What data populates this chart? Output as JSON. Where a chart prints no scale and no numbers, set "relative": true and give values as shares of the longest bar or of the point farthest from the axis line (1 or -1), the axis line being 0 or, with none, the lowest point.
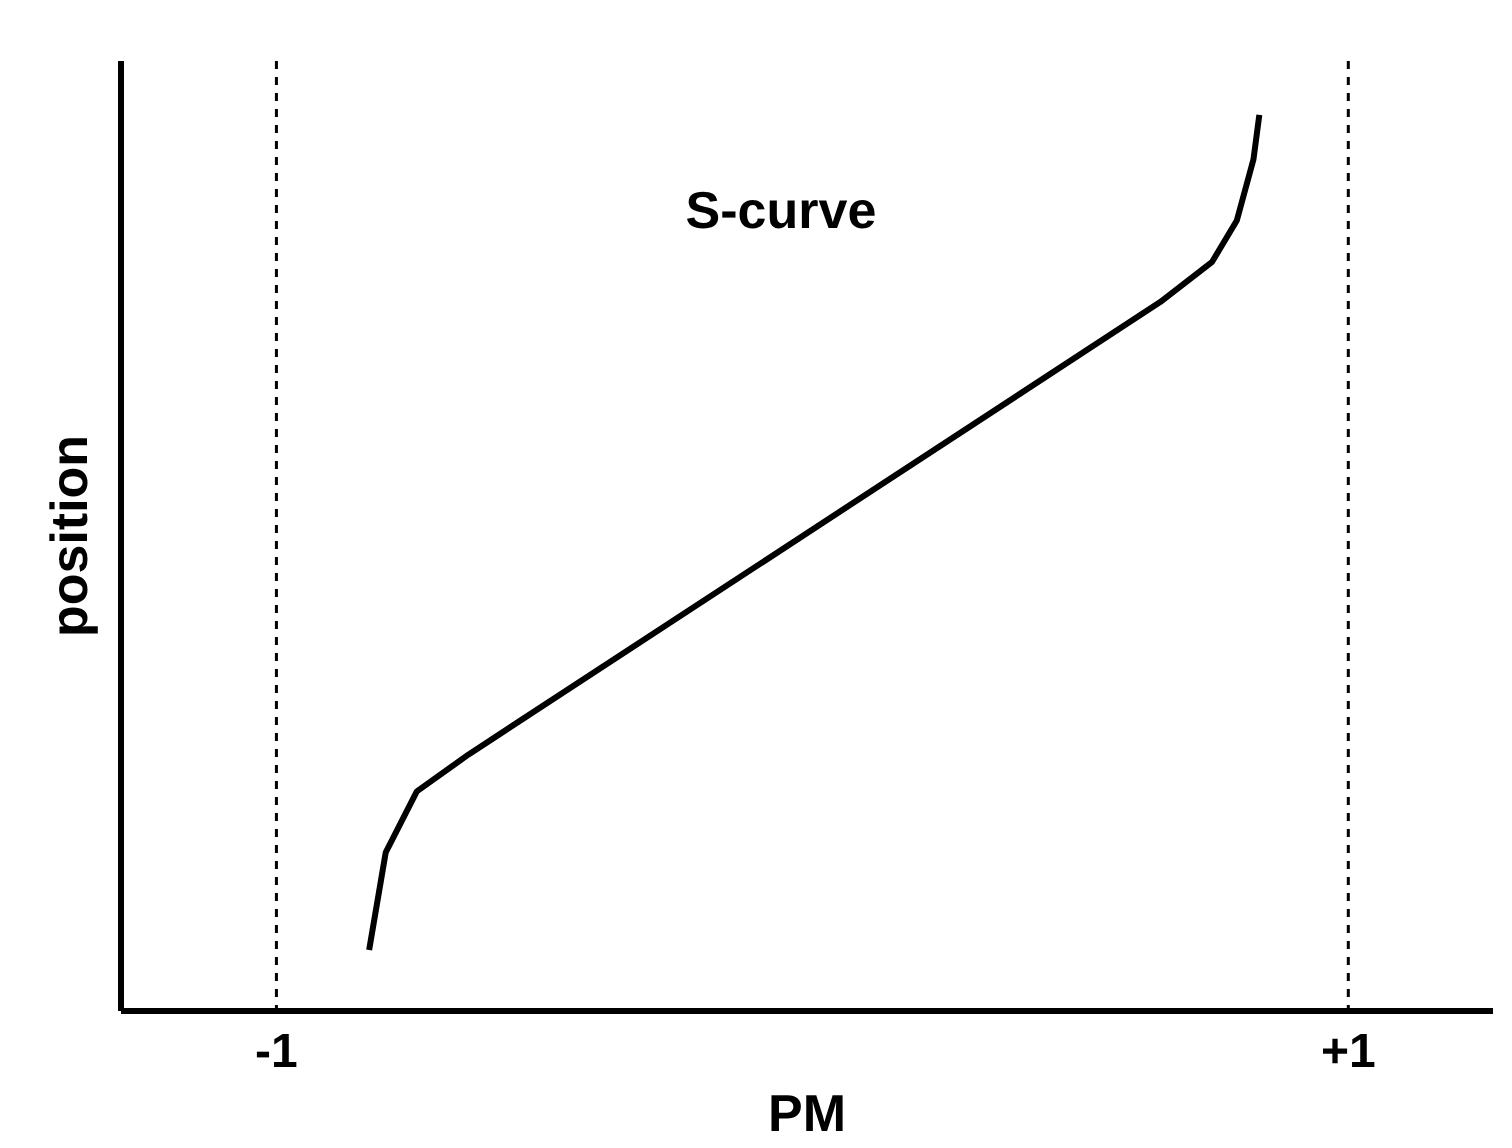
{
  "chart_data": {
    "type": "line",
    "relative": true,
    "xlabel": "PM",
    "ylabel": "position",
    "xlim": [
      -1.29,
      1.27
    ],
    "xticks": [
      {
        "value": -1,
        "label": "-1"
      },
      {
        "value": 1,
        "label": "+1"
      }
    ],
    "series": [
      {
        "name": "S-curve",
        "color": "#000000",
        "x": [
          -0.827,
          -0.796,
          -0.738,
          -0.642,
          0.649,
          0.746,
          0.792,
          0.823,
          0.834
        ],
        "values": [
          0.068,
          0.177,
          0.245,
          0.286,
          0.791,
          0.836,
          0.882,
          0.95,
          1.0
        ]
      }
    ],
    "ref_lines": [
      {
        "axis": "x",
        "value": -1,
        "color": "#000000",
        "line_style": "dashed"
      },
      {
        "axis": "x",
        "value": 1,
        "color": "#000000",
        "line_style": "dashed"
      }
    ]
  }
}
